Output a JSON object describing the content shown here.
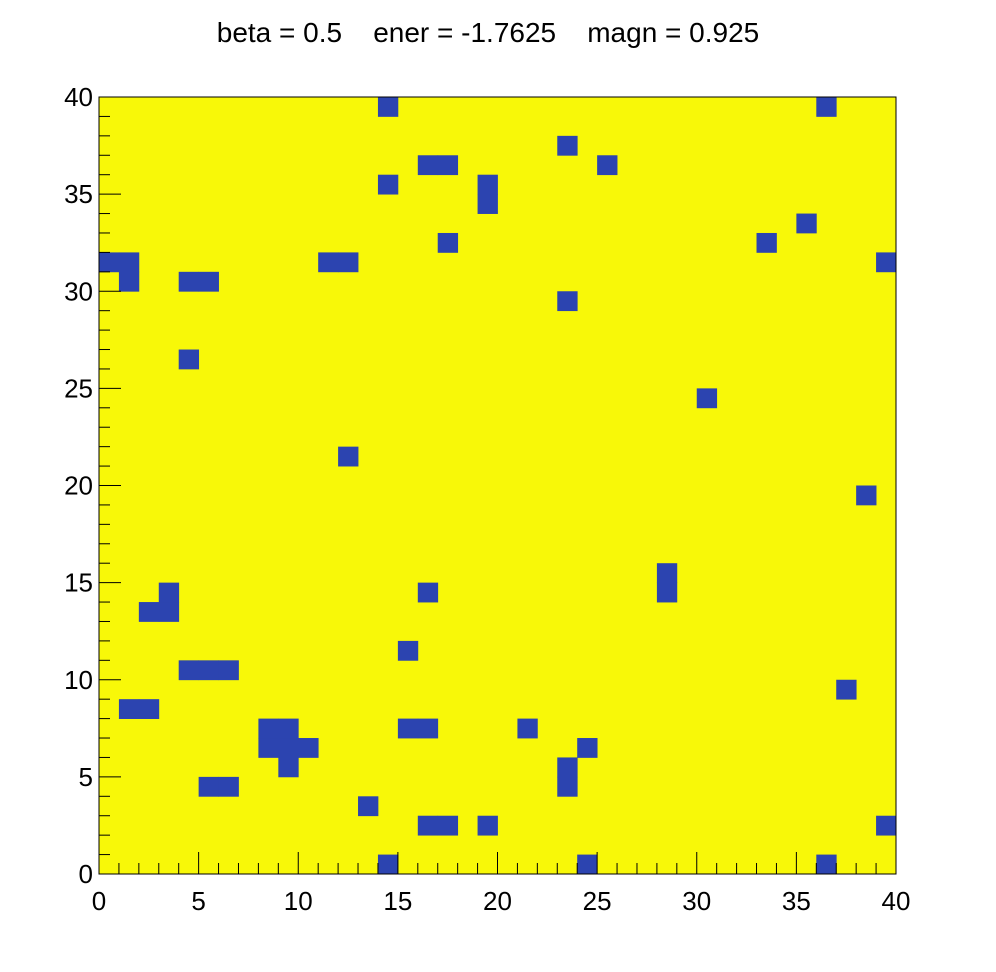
{
  "chart_data": {
    "type": "heatmap",
    "title": "beta = 0.5    ener = -1.7625    magn = 0.925",
    "xlabel": "",
    "ylabel": "",
    "xlim": [
      0,
      40
    ],
    "ylim": [
      0,
      40
    ],
    "x_ticks": [
      "0",
      "5",
      "10",
      "15",
      "20",
      "25",
      "30",
      "35",
      "40"
    ],
    "y_ticks": [
      "0",
      "5",
      "10",
      "15",
      "20",
      "25",
      "30",
      "35",
      "40"
    ],
    "grid_size": [
      40,
      40
    ],
    "background_value": 1,
    "cell_value": -1,
    "colors": {
      "up": "#f8f808",
      "down": "#2c44b0",
      "frame": "#000000"
    },
    "cells": [
      [
        14,
        39
      ],
      [
        36,
        39
      ],
      [
        23,
        37
      ],
      [
        16,
        36
      ],
      [
        17,
        36
      ],
      [
        25,
        36
      ],
      [
        14,
        35
      ],
      [
        19,
        35
      ],
      [
        19,
        34
      ],
      [
        35,
        33
      ],
      [
        17,
        32
      ],
      [
        33,
        32
      ],
      [
        0,
        31
      ],
      [
        1,
        31
      ],
      [
        11,
        31
      ],
      [
        12,
        31
      ],
      [
        39,
        31
      ],
      [
        1,
        30
      ],
      [
        4,
        30
      ],
      [
        5,
        30
      ],
      [
        23,
        29
      ],
      [
        4,
        26
      ],
      [
        30,
        24
      ],
      [
        12,
        21
      ],
      [
        38,
        19
      ],
      [
        28,
        15
      ],
      [
        3,
        14
      ],
      [
        16,
        14
      ],
      [
        28,
        14
      ],
      [
        2,
        13
      ],
      [
        3,
        13
      ],
      [
        15,
        11
      ],
      [
        4,
        10
      ],
      [
        5,
        10
      ],
      [
        6,
        10
      ],
      [
        37,
        9
      ],
      [
        1,
        8
      ],
      [
        2,
        8
      ],
      [
        8,
        7
      ],
      [
        9,
        7
      ],
      [
        15,
        7
      ],
      [
        16,
        7
      ],
      [
        21,
        7
      ],
      [
        8,
        6
      ],
      [
        9,
        6
      ],
      [
        10,
        6
      ],
      [
        24,
        6
      ],
      [
        9,
        5
      ],
      [
        23,
        5
      ],
      [
        5,
        4
      ],
      [
        6,
        4
      ],
      [
        23,
        4
      ],
      [
        13,
        3
      ],
      [
        16,
        2
      ],
      [
        17,
        2
      ],
      [
        19,
        2
      ],
      [
        39,
        2
      ],
      [
        14,
        0
      ],
      [
        24,
        0
      ],
      [
        36,
        0
      ]
    ]
  }
}
